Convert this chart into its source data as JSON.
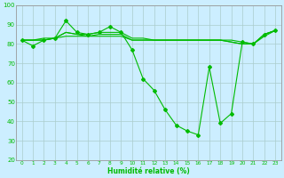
{
  "xlabel": "Humidité relative (%)",
  "bg_color": "#cceeff",
  "grid_color": "#aacccc",
  "line_color": "#00bb00",
  "markersize": 2.0,
  "linewidth": 0.8,
  "ylim": [
    20,
    100
  ],
  "xlim": [
    -0.5,
    23.5
  ],
  "yticks": [
    20,
    30,
    40,
    50,
    60,
    70,
    80,
    90,
    100
  ],
  "xticks": [
    0,
    1,
    2,
    3,
    4,
    5,
    6,
    7,
    8,
    9,
    10,
    11,
    12,
    13,
    14,
    15,
    16,
    17,
    18,
    19,
    20,
    21,
    22,
    23
  ],
  "series_with_markers": [
    [
      82,
      79,
      82,
      83,
      92,
      86,
      85,
      86,
      89,
      86,
      77,
      62,
      56,
      46,
      38,
      35,
      33,
      68,
      39,
      44,
      81,
      80,
      85,
      87
    ]
  ],
  "series_no_markers": [
    [
      82,
      82,
      82,
      83,
      84,
      84,
      84,
      84,
      84,
      84,
      82,
      82,
      82,
      82,
      82,
      82,
      82,
      82,
      82,
      82,
      81,
      80,
      85,
      87
    ],
    [
      82,
      82,
      83,
      83,
      86,
      85,
      85,
      86,
      86,
      86,
      83,
      83,
      82,
      82,
      82,
      82,
      82,
      82,
      82,
      81,
      80,
      80,
      85,
      87
    ],
    [
      82,
      82,
      82,
      83,
      86,
      85,
      84,
      85,
      85,
      85,
      82,
      82,
      82,
      82,
      82,
      82,
      82,
      82,
      82,
      81,
      80,
      80,
      84,
      87
    ]
  ]
}
